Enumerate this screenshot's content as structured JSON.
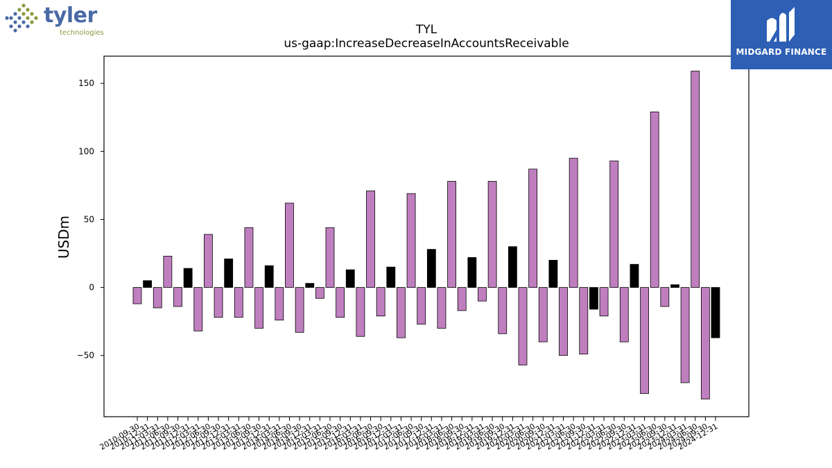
{
  "logos": {
    "tyler_word": "tyler",
    "tyler_sub": "technologies",
    "midgard_name": "MIDGARD FINANCE"
  },
  "colors": {
    "bar_pos_fill": "#bf7fbf",
    "bar_black": "#000000",
    "midgard_blue": "#2d5fb5",
    "tyler_blue": "#4a6aa6",
    "tyler_olive": "#8a9a3c"
  },
  "chart_data": {
    "type": "bar",
    "title": "TYL",
    "subtitle": "us-gaap:IncreaseDecreaseInAccountsReceivable",
    "xlabel": "",
    "ylabel": "USDm",
    "ylim": [
      -95,
      170
    ],
    "yticks": [
      -50,
      0,
      50,
      100,
      150
    ],
    "grid": false,
    "categories": [
      "2010-09-30",
      "2010-12-31",
      "2011-03-31",
      "2011-06-30",
      "2011-09-30",
      "2011-12-31",
      "2012-03-31",
      "2012-06-30",
      "2012-09-30",
      "2012-12-31",
      "2013-03-31",
      "2013-06-30",
      "2013-09-30",
      "2013-12-31",
      "2014-03-31",
      "2014-06-30",
      "2014-09-30",
      "2014-12-31",
      "2015-03-31",
      "2015-06-30",
      "2015-09-30",
      "2015-12-31",
      "2016-03-31",
      "2016-06-30",
      "2016-09-30",
      "2016-12-31",
      "2017-03-31",
      "2017-06-30",
      "2017-09-30",
      "2017-12-31",
      "2018-03-31",
      "2018-06-30",
      "2018-09-30",
      "2018-12-31",
      "2019-03-31",
      "2019-06-30",
      "2019-09-30",
      "2019-12-31",
      "2020-03-31",
      "2020-06-30",
      "2020-09-30",
      "2020-12-31",
      "2021-03-31",
      "2021-06-30",
      "2021-09-30",
      "2021-12-31",
      "2022-03-31",
      "2022-06-30",
      "2022-09-30",
      "2022-12-31",
      "2023-03-31",
      "2023-06-30",
      "2023-09-30",
      "2023-12-31",
      "2024-03-31",
      "2024-06-30",
      "2024-09-30",
      "2024-12-31"
    ],
    "values": [
      -12,
      5,
      -15,
      23,
      -14,
      14,
      -32,
      39,
      -22,
      21,
      -22,
      44,
      -30,
      16,
      -24,
      62,
      -33,
      3,
      -8,
      44,
      -22,
      13,
      -36,
      71,
      -21,
      15,
      -37,
      69,
      -27,
      28,
      -30,
      78,
      -17,
      22,
      -10,
      78,
      -34,
      30,
      -57,
      87,
      -40,
      20,
      -50,
      95,
      -49,
      -16,
      -21,
      93,
      -40,
      17,
      -78,
      129,
      -14,
      2,
      -70,
      159,
      -82,
      -37
    ],
    "bar_colors": [
      "purple",
      "black",
      "purple",
      "purple",
      "purple",
      "black",
      "purple",
      "purple",
      "purple",
      "black",
      "purple",
      "purple",
      "purple",
      "black",
      "purple",
      "purple",
      "purple",
      "black",
      "purple",
      "purple",
      "purple",
      "black",
      "purple",
      "purple",
      "purple",
      "black",
      "purple",
      "purple",
      "purple",
      "black",
      "purple",
      "purple",
      "purple",
      "black",
      "purple",
      "purple",
      "purple",
      "black",
      "purple",
      "purple",
      "purple",
      "black",
      "purple",
      "purple",
      "purple",
      "black",
      "purple",
      "purple",
      "purple",
      "black",
      "purple",
      "purple",
      "purple",
      "black",
      "purple",
      "purple",
      "purple",
      "black"
    ]
  }
}
